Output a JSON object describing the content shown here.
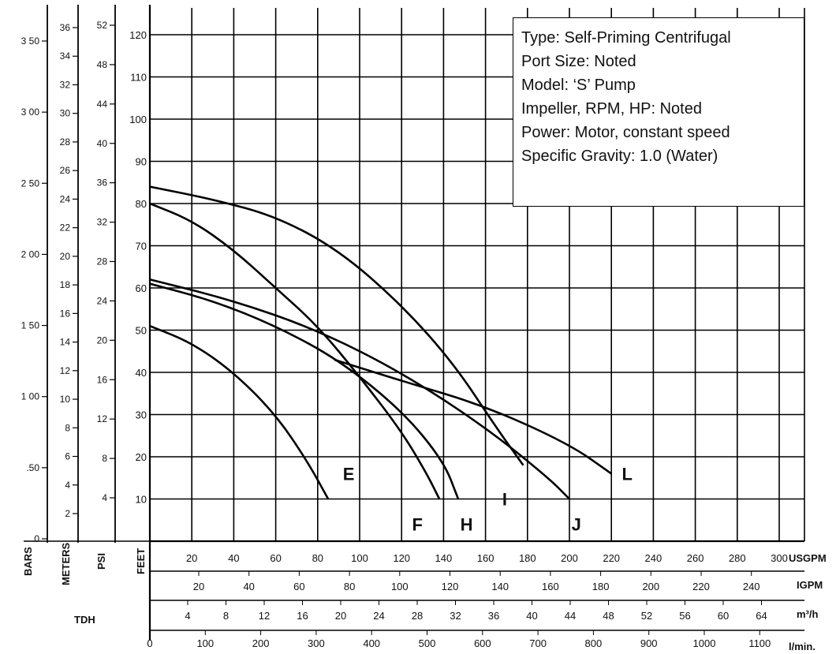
{
  "info_box": {
    "lines": [
      "Type: Self-Priming Centrifugal",
      "Port Size: Noted",
      "Model: ‘S’ Pump",
      "Impeller, RPM, HP: Noted",
      "Power: Motor, constant speed",
      "Specific Gravity: 1.0 (Water)"
    ]
  },
  "chart_data": {
    "type": "line",
    "title": "",
    "x_unit_label": "USGPM",
    "y_unit_label": "FEET",
    "xlim": [
      0,
      310
    ],
    "ylim": [
      0,
      125
    ],
    "grid": true,
    "x_ticks": [
      20,
      40,
      60,
      80,
      100,
      120,
      140,
      160,
      180,
      200,
      220,
      240,
      260,
      280,
      300
    ],
    "y_ticks": [
      10,
      20,
      30,
      40,
      50,
      60,
      70,
      80,
      90,
      100,
      110,
      120
    ],
    "series": [
      {
        "name": "E",
        "points": [
          [
            0,
            51
          ],
          [
            20,
            47
          ],
          [
            40,
            40
          ],
          [
            60,
            30
          ],
          [
            75,
            19
          ],
          [
            85,
            10
          ]
        ]
      },
      {
        "name": "F",
        "points": [
          [
            0,
            80
          ],
          [
            20,
            76
          ],
          [
            40,
            69
          ],
          [
            60,
            60
          ],
          [
            80,
            51
          ],
          [
            100,
            39
          ],
          [
            120,
            26
          ],
          [
            132,
            16
          ],
          [
            138,
            10
          ]
        ]
      },
      {
        "name": "H",
        "points": [
          [
            0,
            61
          ],
          [
            30,
            57
          ],
          [
            60,
            51
          ],
          [
            90,
            43
          ],
          [
            120,
            31
          ],
          [
            140,
            19
          ],
          [
            147,
            10
          ]
        ]
      },
      {
        "name": "I",
        "points": [
          [
            0,
            84
          ],
          [
            30,
            81
          ],
          [
            60,
            77
          ],
          [
            90,
            69
          ],
          [
            120,
            56
          ],
          [
            145,
            42
          ],
          [
            165,
            27
          ],
          [
            178,
            18
          ]
        ]
      },
      {
        "name": "J",
        "points": [
          [
            0,
            62
          ],
          [
            40,
            57
          ],
          [
            80,
            50
          ],
          [
            120,
            40
          ],
          [
            160,
            27
          ],
          [
            190,
            15
          ],
          [
            200,
            10
          ]
        ]
      },
      {
        "name": "L",
        "points": [
          [
            88,
            43
          ],
          [
            120,
            38
          ],
          [
            160,
            32
          ],
          [
            200,
            23
          ],
          [
            220,
            16
          ]
        ]
      }
    ],
    "curve_labels": [
      "E",
      "F",
      "H",
      "I",
      "J",
      "L"
    ],
    "left_scales": {
      "bars": {
        "title": "BARS",
        "ticks": [
          "3 50",
          "3 00",
          "2 50",
          "2 00",
          "1 50",
          "1 00",
          ".50",
          "0"
        ]
      },
      "meters": {
        "title": "METERS",
        "ticks": [
          "36",
          "34",
          "32",
          "30",
          "28",
          "26",
          "24",
          "22",
          "20",
          "18",
          "16",
          "14",
          "12",
          "10",
          "8",
          "6",
          "4",
          "2"
        ]
      },
      "psi": {
        "title": "PSI",
        "ticks": [
          "52",
          "48",
          "44",
          "40",
          "36",
          "32",
          "28",
          "24",
          "20",
          "16",
          "12",
          "8",
          "4"
        ]
      },
      "feet": {
        "title": "FEET"
      },
      "group_label": "TDH"
    },
    "bottom_scales": {
      "igpm": {
        "unit": "IGPM",
        "ticks": [
          "20",
          "40",
          "60",
          "80",
          "100",
          "120",
          "140",
          "160",
          "180",
          "200",
          "220",
          "240"
        ]
      },
      "m3h": {
        "unit": "m³/h",
        "ticks": [
          "4",
          "8",
          "12",
          "16",
          "20",
          "24",
          "28",
          "32",
          "36",
          "40",
          "44",
          "48",
          "52",
          "56",
          "60",
          "64"
        ]
      },
      "lmin": {
        "unit": "l/min.",
        "ticks": [
          "0",
          "100",
          "200",
          "300",
          "400",
          "500",
          "600",
          "700",
          "800",
          "900",
          "1000",
          "1100"
        ]
      }
    }
  }
}
